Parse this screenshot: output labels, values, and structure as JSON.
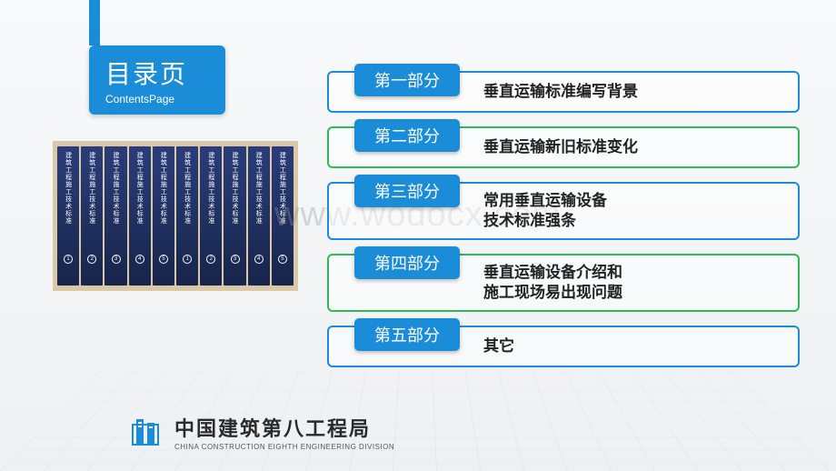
{
  "title": {
    "main": "目录页",
    "sub": "ContentsPage"
  },
  "sections": [
    {
      "label": "第一部分",
      "lines": [
        "垂直运输标准编写背景"
      ],
      "border_color": "blue"
    },
    {
      "label": "第二部分",
      "lines": [
        "垂直运输新旧标准变化"
      ],
      "border_color": "green"
    },
    {
      "label": "第三部分",
      "lines": [
        "常用垂直运输设备",
        "技术标准强条"
      ],
      "border_color": "blue"
    },
    {
      "label": "第四部分",
      "lines": [
        "垂直运输设备介绍和",
        "施工现场易出现问题"
      ],
      "border_color": "green"
    },
    {
      "label": "第五部分",
      "lines": [
        "其它"
      ],
      "border_color": "blue"
    }
  ],
  "books": {
    "spine_title": "建筑工程施工技术标准",
    "count": 10
  },
  "footer": {
    "company_cn": "中国建筑第八工程局",
    "company_en": "CHINA CONSTRUCTION EIGHTH ENGINEERING DIVISION",
    "logo_color": "#1a8cd8"
  },
  "watermark": "www.wodocx.com",
  "colors": {
    "primary_blue": "#1a8cd8",
    "accent_green": "#2eb857",
    "book_blue": "#2a3d7a"
  }
}
